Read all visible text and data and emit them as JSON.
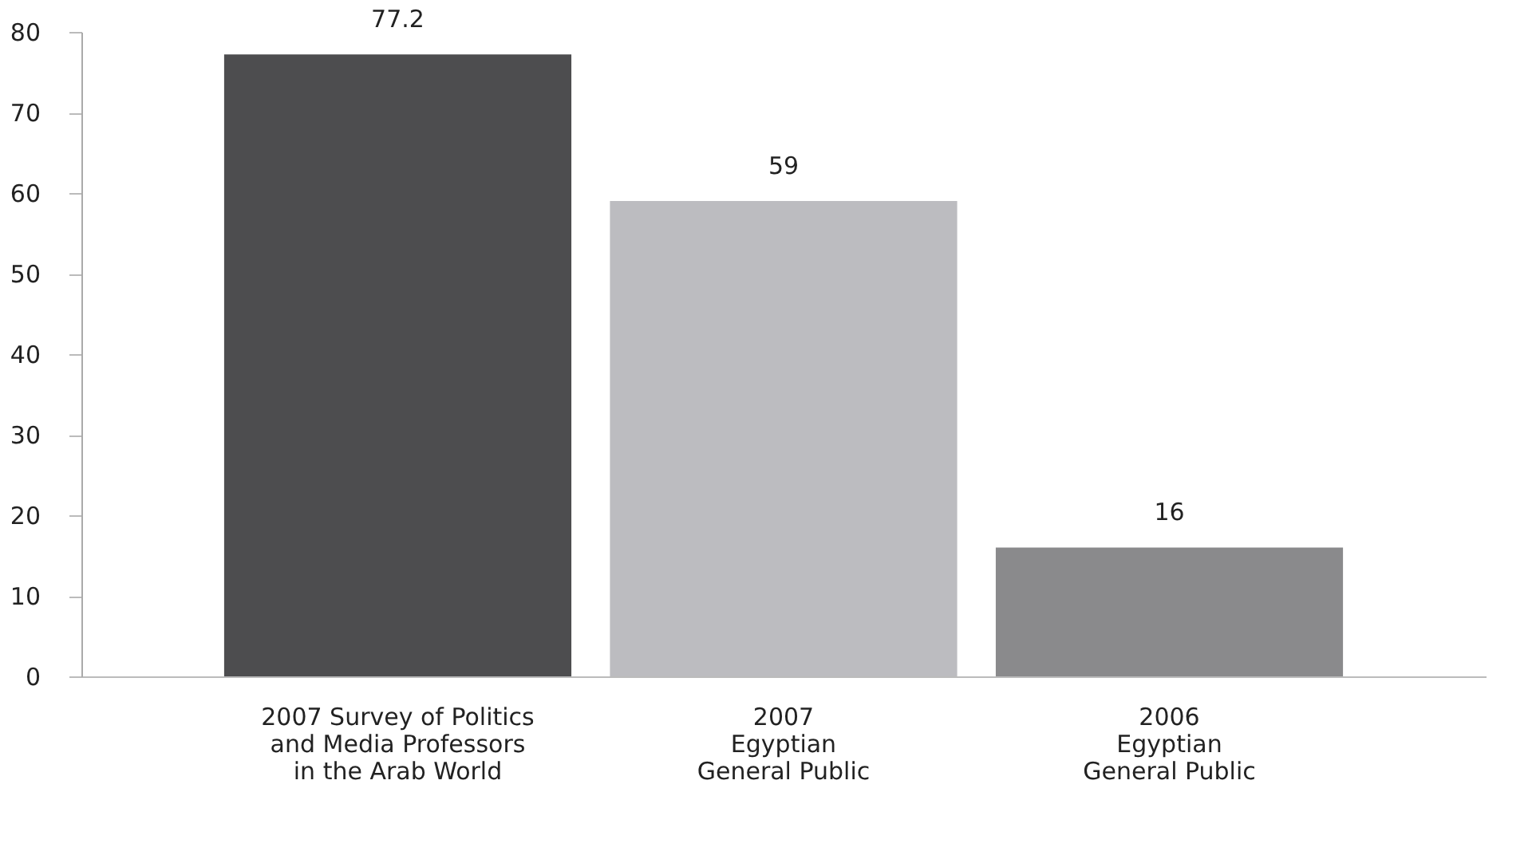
{
  "chart_data": {
    "type": "bar",
    "categories": [
      "2007 Survey of Politics\nand Media Professors\nin the Arab World",
      "2007\nEgyptian\nGeneral Public",
      "2006\nEgyptian\nGeneral Public"
    ],
    "values": [
      77.2,
      59,
      16
    ],
    "colors": [
      "#4d4d4f",
      "#bcbcc0",
      "#8a8a8c"
    ],
    "ylim": [
      0,
      80
    ],
    "yticks": [
      0,
      10,
      20,
      30,
      40,
      50,
      60,
      70,
      80
    ],
    "data_labels": true,
    "grid": false
  }
}
